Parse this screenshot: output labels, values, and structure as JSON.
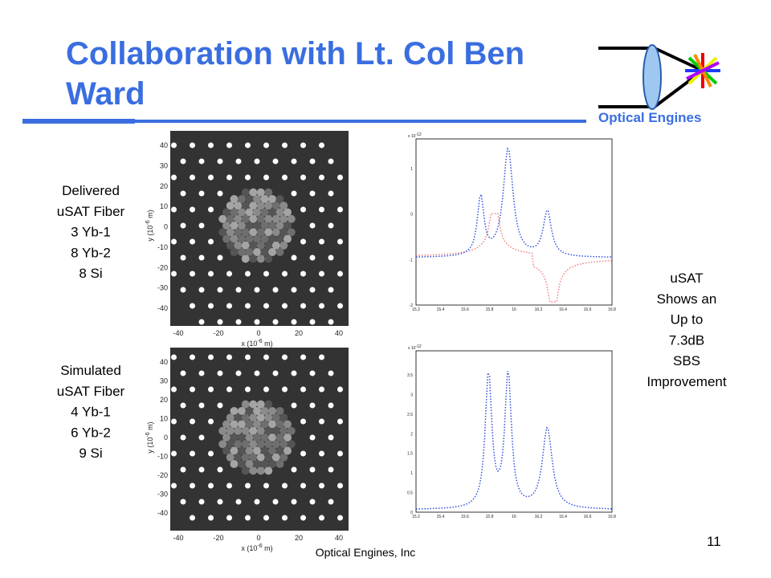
{
  "header": {
    "title_lines": [
      "Collaboration with Lt. Col Ben",
      "Ward"
    ],
    "logo_text": "Optical Engines"
  },
  "fibers": [
    {
      "caption_lines": [
        "Delivered",
        "uSAT Fiber",
        "3 Yb-1",
        "8 Yb-2",
        "8 Si"
      ]
    },
    {
      "caption_lines": [
        "Simulated",
        "uSAT Fiber",
        "4 Yb-1",
        "6 Yb-2",
        "9 Si"
      ]
    }
  ],
  "fiber_axes": {
    "xticks": [
      "-40",
      "-20",
      "0",
      "20",
      "40"
    ],
    "yticks": [
      "40",
      "30",
      "20",
      "10",
      "0",
      "-10",
      "-20",
      "-30",
      "-40"
    ],
    "xlabel": [
      "x (10",
      "-6",
      " m)"
    ],
    "ylabel": [
      "y (10",
      "-6",
      " m)"
    ]
  },
  "plots": [
    {
      "scale": [
        "x 10",
        "-12"
      ],
      "yticks": [
        "1",
        "0",
        "-1",
        "-2"
      ],
      "xticks": [
        "15.2",
        "15.4",
        "15.6",
        "15.8",
        "16",
        "16.2",
        "16.4",
        "16.6",
        "16.8"
      ]
    },
    {
      "scale": [
        "x 10",
        "-12"
      ],
      "yticks": [
        "3.5",
        "3",
        "2.5",
        "2",
        "1.5",
        "1",
        "0.5",
        "0"
      ],
      "xticks": [
        "15.2",
        "15.4",
        "15.6",
        "15.8",
        "16",
        "16.2",
        "16.4",
        "16.6",
        "16.8"
      ]
    }
  ],
  "side_note_lines": [
    "uSAT",
    "Shows an",
    "Up to",
    "7.3dB",
    "SBS",
    "Improvement"
  ],
  "footer": {
    "company": "Optical Engines, Inc",
    "page": "11"
  }
}
